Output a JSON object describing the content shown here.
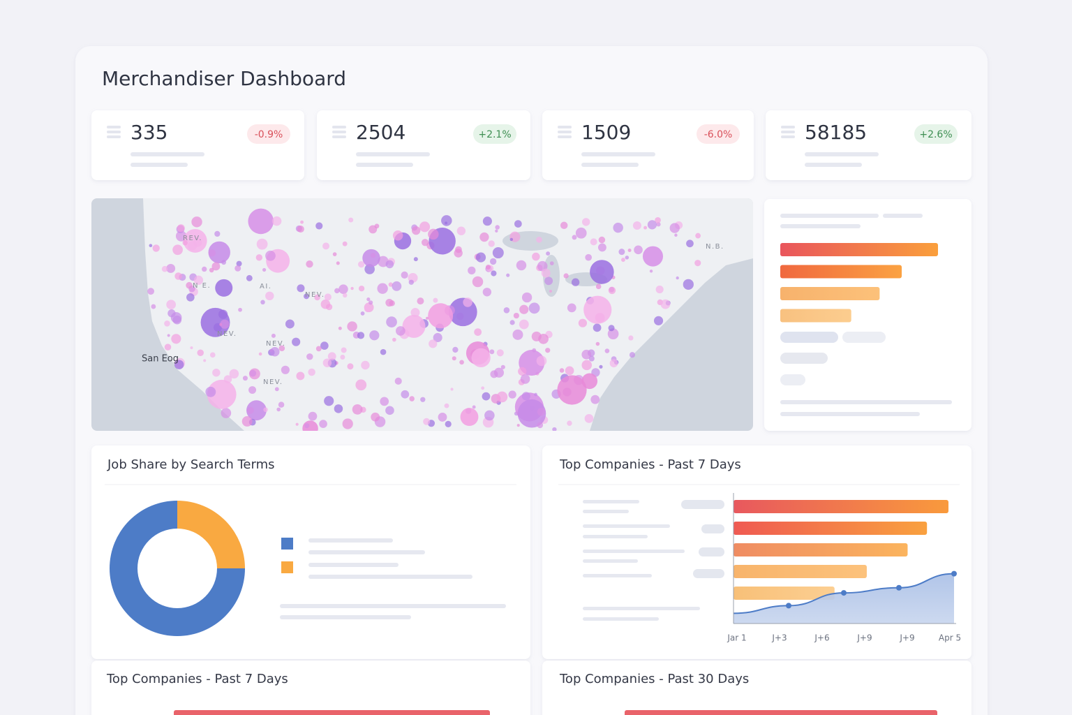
{
  "header": {
    "title": "Merchandiser Dashboard"
  },
  "kpis": [
    {
      "value": "335",
      "change": "-0.9%"
    },
    {
      "value": "2504",
      "change": "+2.1%"
    },
    {
      "value": "1509",
      "change": "-6.0%"
    },
    {
      "value": "58185",
      "change": "+2.6%"
    }
  ],
  "map": {
    "labels": [
      "REV.",
      "N E.",
      "AI.",
      "NEV.",
      "NEV.",
      "NEV.",
      "NEV.",
      "San Eog",
      "N.B."
    ]
  },
  "summary": {
    "bars": {
      "values": [
        100,
        77,
        63,
        45
      ],
      "xlim": [
        0,
        100
      ],
      "colors": [
        [
          "#e9555c",
          "#fa9f3c"
        ],
        [
          "#f0683f",
          "#fba242"
        ],
        [
          "#f7b26c",
          "#fcc17a"
        ],
        [
          "#f8c180",
          "#fccd8f"
        ]
      ]
    }
  },
  "job_share": {
    "title": "Job Share by Search Terms",
    "donut": {
      "values": [
        75,
        25
      ],
      "colors": [
        "#4d7cc7",
        "#f9a941"
      ]
    }
  },
  "top_companies_7d": {
    "title": "Top Companies - Past 7 Days",
    "bars": {
      "values": [
        100,
        90,
        81,
        62,
        47
      ],
      "xlim": [
        0,
        100
      ],
      "colors": [
        [
          "#e8585e",
          "#f99a3c"
        ],
        [
          "#ef5a52",
          "#f9a13f"
        ],
        [
          "#ef8c62",
          "#fbb45e"
        ],
        [
          "#f8b46b",
          "#fcc27c"
        ],
        [
          "#f8c078",
          "#fccf92"
        ]
      ]
    },
    "line": {
      "values": [
        8,
        14,
        24,
        28,
        39
      ],
      "ylim": [
        0,
        100
      ],
      "color": "#4d7cc7"
    },
    "x_labels": [
      "Jar 1",
      "J+3",
      "J+6",
      "J+9",
      "J+9",
      "Apr 5"
    ]
  },
  "bottom": {
    "left_title": "Top Companies - Past 7 Days",
    "right_title": "Top Companies - Past 30 Days"
  }
}
